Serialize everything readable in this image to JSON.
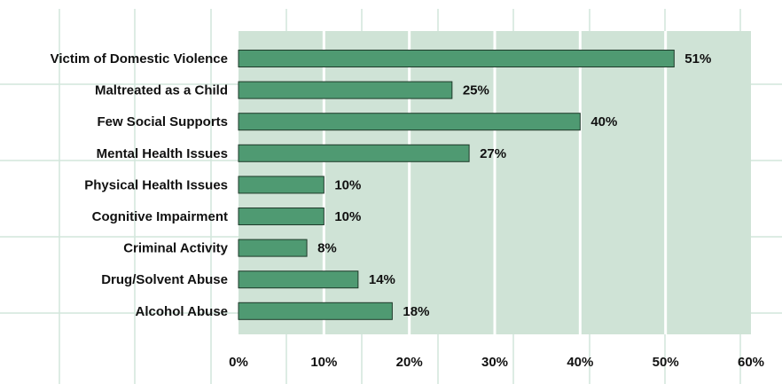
{
  "chart_data": {
    "type": "bar",
    "orientation": "horizontal",
    "categories": [
      "Victim of Domestic Violence",
      "Maltreated as a Child",
      "Few Social Supports",
      "Mental Health Issues",
      "Physical Health Issues",
      "Cognitive Impairment",
      "Criminal Activity",
      "Drug/Solvent Abuse",
      "Alcohol Abuse"
    ],
    "values": [
      51,
      25,
      40,
      27,
      10,
      10,
      8,
      14,
      18
    ],
    "value_labels": [
      "51%",
      "25%",
      "40%",
      "27%",
      "10%",
      "10%",
      "8%",
      "14%",
      "18%"
    ],
    "xlim": [
      0,
      60
    ],
    "xticks": [
      0,
      10,
      20,
      30,
      40,
      50,
      60
    ],
    "xtick_labels": [
      "0%",
      "10%",
      "20%",
      "30%",
      "40%",
      "50%",
      "60%"
    ],
    "grid": true,
    "title": "",
    "xlabel": "",
    "ylabel": ""
  },
  "colors": {
    "plot_background": "#cfe3d6",
    "bar_fill": "#4f9a72",
    "bar_stroke": "#1e3a2a",
    "gridline": "#ffffff",
    "outer_grid": "#d2e6dc",
    "text": "#111111"
  }
}
